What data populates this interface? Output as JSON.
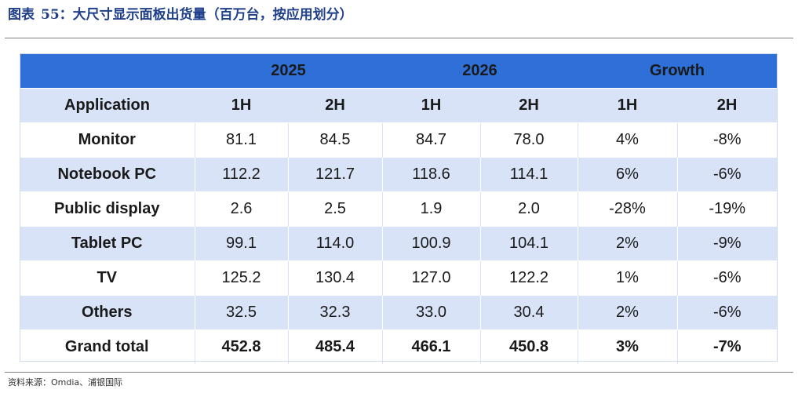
{
  "figure": {
    "label": "图表",
    "number": "55：",
    "title": "大尺寸显示面板出货量（百万台，按应用划分）"
  },
  "table": {
    "group_headers": [
      "",
      "2025",
      "2026",
      "Growth"
    ],
    "sub_headers": [
      "Application",
      "1H",
      "2H",
      "1H",
      "2H",
      "1H",
      "2H"
    ],
    "rows": [
      {
        "name": "Monitor",
        "cells": [
          "81.1",
          "84.5",
          "84.7",
          "78.0",
          "4%",
          "-8%"
        ]
      },
      {
        "name": "Notebook PC",
        "cells": [
          "112.2",
          "121.7",
          "118.6",
          "114.1",
          "6%",
          "-6%"
        ]
      },
      {
        "name": "Public display",
        "cells": [
          "2.6",
          "2.5",
          "1.9",
          "2.0",
          "-28%",
          "-19%"
        ]
      },
      {
        "name": "Tablet PC",
        "cells": [
          "99.1",
          "114.0",
          "100.9",
          "104.1",
          "2%",
          "-9%"
        ]
      },
      {
        "name": "TV",
        "cells": [
          "125.2",
          "130.4",
          "127.0",
          "122.2",
          "1%",
          "-6%"
        ]
      },
      {
        "name": "Others",
        "cells": [
          "32.5",
          "32.3",
          "33.0",
          "30.4",
          "2%",
          "-6%"
        ]
      },
      {
        "name": "Grand total",
        "cells": [
          "452.8",
          "485.4",
          "466.1",
          "450.8",
          "3%",
          "-7%"
        ]
      }
    ]
  },
  "source": "资料来源：Omdia、浦银国际",
  "colors": {
    "header_blue": "#2f6fd8",
    "band_light_blue": "#d8e3f7",
    "title_navy": "#1f3f8a"
  }
}
